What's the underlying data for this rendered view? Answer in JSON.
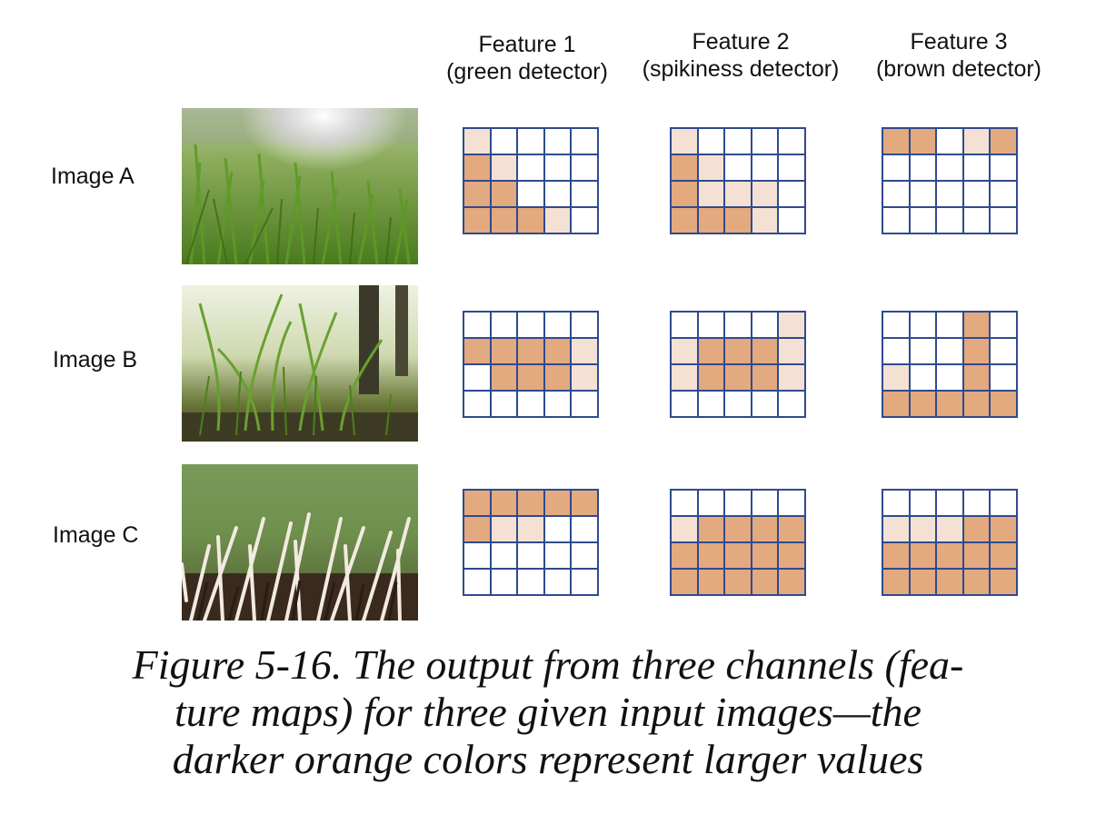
{
  "features": [
    {
      "title": "Feature 1",
      "subtitle": "(green detector)"
    },
    {
      "title": "Feature 2",
      "subtitle": "(spikiness detector)"
    },
    {
      "title": "Feature 3",
      "subtitle": "(brown detector)"
    }
  ],
  "images": [
    {
      "label": "Image A",
      "photo_icon": "grass-field-photo"
    },
    {
      "label": "Image B",
      "photo_icon": "grass-closeup-photo"
    },
    {
      "label": "Image C",
      "photo_icon": "porcupine-quills-photo"
    }
  ],
  "colors": {
    "grid_border": "#2f4a8f",
    "light_orange": "#f5e1d3",
    "dark_orange": "#e3a97f",
    "white": "#ffffff"
  },
  "feature_maps": [
    [
      [
        [
          1,
          0,
          0,
          0,
          0
        ],
        [
          2,
          1,
          0,
          0,
          0
        ],
        [
          2,
          2,
          0,
          0,
          0
        ],
        [
          2,
          2,
          2,
          1,
          0
        ]
      ],
      [
        [
          1,
          0,
          0,
          0,
          0
        ],
        [
          2,
          1,
          0,
          0,
          0
        ],
        [
          2,
          1,
          1,
          1,
          0
        ],
        [
          2,
          2,
          2,
          1,
          0
        ]
      ],
      [
        [
          2,
          2,
          0,
          1,
          2
        ],
        [
          0,
          0,
          0,
          0,
          0
        ],
        [
          0,
          0,
          0,
          0,
          0
        ],
        [
          0,
          0,
          0,
          0,
          0
        ]
      ]
    ],
    [
      [
        [
          0,
          0,
          0,
          0,
          0
        ],
        [
          2,
          2,
          2,
          2,
          1
        ],
        [
          0,
          2,
          2,
          2,
          1
        ],
        [
          0,
          0,
          0,
          0,
          0
        ]
      ],
      [
        [
          0,
          0,
          0,
          0,
          1
        ],
        [
          1,
          2,
          2,
          2,
          1
        ],
        [
          1,
          2,
          2,
          2,
          1
        ],
        [
          0,
          0,
          0,
          0,
          0
        ]
      ],
      [
        [
          0,
          0,
          0,
          2,
          0
        ],
        [
          0,
          0,
          0,
          2,
          0
        ],
        [
          1,
          0,
          0,
          2,
          0
        ],
        [
          2,
          2,
          2,
          2,
          2
        ]
      ]
    ],
    [
      [
        [
          2,
          2,
          2,
          2,
          2
        ],
        [
          2,
          1,
          1,
          0,
          0
        ],
        [
          0,
          0,
          0,
          0,
          0
        ],
        [
          0,
          0,
          0,
          0,
          0
        ]
      ],
      [
        [
          0,
          0,
          0,
          0,
          0
        ],
        [
          1,
          2,
          2,
          2,
          2
        ],
        [
          2,
          2,
          2,
          2,
          2
        ],
        [
          2,
          2,
          2,
          2,
          2
        ]
      ],
      [
        [
          0,
          0,
          0,
          0,
          0
        ],
        [
          1,
          1,
          1,
          2,
          2
        ],
        [
          2,
          2,
          2,
          2,
          2
        ],
        [
          2,
          2,
          2,
          2,
          2
        ]
      ]
    ]
  ],
  "caption": {
    "line1": "Figure 5-16. The output from three channels (fea-",
    "line2": "ture maps) for three given input images—the",
    "line3": "darker orange colors represent larger values"
  }
}
